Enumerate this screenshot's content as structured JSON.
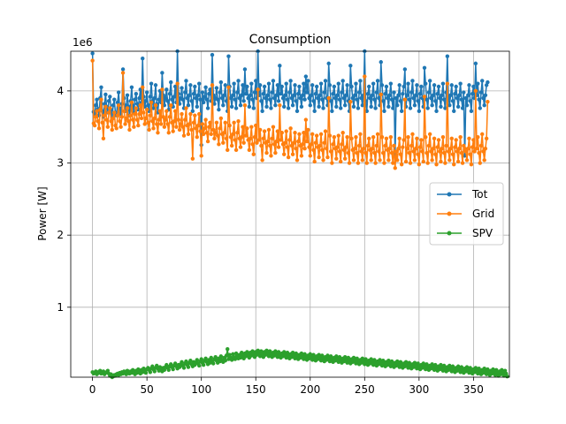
{
  "chart_data": {
    "type": "line",
    "title": "Consumption",
    "xlabel": "",
    "ylabel": "Power [W]",
    "y_offset_label": "1e6",
    "xlim": [
      -20,
      383
    ],
    "ylim": [
      0.03,
      4.55
    ],
    "x_ticks": [
      0,
      50,
      100,
      150,
      200,
      250,
      300,
      350
    ],
    "y_ticks": [
      1,
      2,
      3,
      4
    ],
    "grid": true,
    "legend_position": "center right",
    "series": [
      {
        "name": "Tot",
        "color": "#1f77b4",
        "x_start": 0,
        "x_step": 1,
        "values": [
          4.52,
          3.71,
          3.68,
          3.8,
          3.88,
          3.75,
          3.66,
          3.9,
          4.05,
          3.72,
          3.64,
          3.82,
          3.95,
          3.78,
          3.7,
          3.86,
          3.92,
          3.74,
          3.62,
          3.8,
          3.88,
          3.7,
          3.66,
          3.84,
          3.98,
          3.76,
          3.68,
          3.82,
          4.3,
          3.9,
          3.72,
          3.8,
          3.94,
          3.78,
          3.66,
          3.86,
          4.05,
          3.8,
          3.7,
          3.88,
          3.96,
          3.82,
          3.74,
          3.9,
          4.02,
          3.84,
          4.45,
          3.92,
          3.78,
          3.86,
          3.98,
          3.8,
          3.72,
          3.92,
          4.1,
          3.86,
          3.76,
          3.9,
          4.08,
          3.82,
          3.7,
          3.88,
          4.0,
          3.84,
          4.25,
          3.94,
          3.8,
          3.9,
          4.02,
          3.86,
          3.74,
          3.96,
          4.12,
          3.88,
          3.78,
          3.92,
          4.06,
          3.84,
          4.55,
          3.96,
          3.82,
          3.9,
          4.04,
          3.88,
          3.76,
          3.98,
          4.14,
          3.9,
          3.8,
          3.94,
          4.08,
          3.86,
          3.72,
          3.96,
          4.06,
          3.9,
          3.78,
          3.94,
          4.1,
          3.88,
          3.25,
          3.98,
          3.84,
          3.92,
          4.05,
          3.88,
          3.76,
          3.96,
          4.02,
          3.86,
          4.5,
          3.94,
          3.82,
          3.9,
          4.04,
          3.88,
          3.74,
          3.98,
          4.12,
          3.9,
          3.8,
          3.94,
          4.08,
          3.86,
          3.72,
          4.48,
          4.06,
          3.9,
          3.78,
          3.94,
          4.1,
          3.88,
          3.76,
          3.98,
          4.14,
          3.9,
          3.8,
          3.94,
          4.08,
          3.86,
          4.3,
          3.96,
          4.06,
          3.9,
          3.78,
          3.94,
          4.1,
          3.88,
          3.76,
          3.98,
          4.14,
          3.9,
          4.55,
          3.94,
          4.08,
          3.86,
          3.72,
          3.96,
          4.06,
          3.9,
          3.78,
          3.94,
          4.1,
          3.88,
          3.76,
          3.98,
          4.14,
          3.9,
          3.8,
          3.94,
          4.08,
          3.86,
          4.35,
          3.96,
          4.06,
          3.9,
          3.78,
          3.94,
          4.1,
          3.88,
          3.76,
          3.98,
          4.14,
          3.9,
          3.8,
          3.94,
          4.08,
          3.86,
          3.72,
          3.96,
          4.06,
          3.9,
          3.78,
          3.94,
          4.1,
          3.88,
          4.2,
          3.98,
          4.14,
          3.9,
          3.8,
          3.94,
          4.08,
          3.86,
          3.72,
          3.96,
          4.06,
          3.9,
          3.78,
          3.94,
          4.1,
          3.88,
          3.76,
          3.98,
          4.14,
          3.9,
          3.8,
          4.38,
          4.08,
          3.86,
          3.72,
          3.96,
          4.06,
          3.9,
          3.78,
          3.94,
          4.1,
          3.88,
          3.76,
          3.98,
          4.14,
          3.9,
          3.8,
          3.94,
          4.08,
          3.86,
          3.72,
          4.35,
          4.06,
          3.9,
          3.78,
          3.94,
          4.1,
          3.88,
          3.76,
          3.98,
          4.14,
          3.9,
          3.8,
          3.94,
          4.55,
          3.86,
          3.72,
          3.96,
          4.06,
          3.9,
          3.78,
          3.94,
          4.1,
          3.88,
          3.76,
          3.98,
          4.14,
          3.9,
          3.8,
          4.4,
          4.08,
          3.86,
          3.72,
          3.96,
          4.06,
          3.9,
          3.78,
          3.94,
          4.1,
          3.88,
          3.76,
          3.98,
          3.1,
          3.9,
          3.8,
          3.94,
          4.08,
          3.86,
          3.72,
          3.96,
          4.06,
          4.3,
          3.78,
          3.94,
          4.1,
          3.88,
          3.76,
          3.98,
          4.14,
          3.9,
          3.8,
          3.94,
          4.08,
          3.86,
          3.72,
          3.96,
          4.06,
          3.9,
          3.78,
          4.32,
          4.1,
          3.88,
          3.76,
          3.98,
          4.14,
          3.9,
          3.8,
          3.94,
          4.08,
          3.86,
          3.72,
          3.96,
          4.06,
          3.9,
          3.78,
          3.94,
          4.1,
          3.88,
          3.76,
          3.98,
          4.48,
          3.9,
          3.8,
          3.94,
          4.08,
          3.86,
          3.72,
          3.96,
          4.06,
          3.9,
          3.78,
          3.94,
          4.1,
          3.88,
          3.76,
          3.98,
          3.1,
          3.9,
          3.8,
          3.94,
          4.08,
          3.86,
          3.72,
          3.96,
          4.06,
          3.9,
          4.38,
          3.94,
          4.1,
          3.88,
          3.76,
          3.98,
          4.14,
          3.9,
          3.8,
          3.94,
          4.08,
          4.12
        ]
      },
      {
        "name": "Grid",
        "color": "#ff7f0e",
        "x_start": 0,
        "x_step": 1,
        "values": [
          4.42,
          3.55,
          3.52,
          3.64,
          3.72,
          3.58,
          3.48,
          3.74,
          3.88,
          3.56,
          3.34,
          3.66,
          3.78,
          3.6,
          3.5,
          3.7,
          3.76,
          3.58,
          3.46,
          3.62,
          3.7,
          3.52,
          3.48,
          3.66,
          3.8,
          3.58,
          3.5,
          3.64,
          4.25,
          3.72,
          3.54,
          3.62,
          3.76,
          3.58,
          3.46,
          3.66,
          3.84,
          3.6,
          3.5,
          3.68,
          3.76,
          3.6,
          3.52,
          3.68,
          3.8,
          3.62,
          4.05,
          3.7,
          3.54,
          3.62,
          3.74,
          3.56,
          3.46,
          3.66,
          3.84,
          3.58,
          3.48,
          3.62,
          3.8,
          3.54,
          3.42,
          3.6,
          3.72,
          3.54,
          4.02,
          3.64,
          3.5,
          3.6,
          3.72,
          3.54,
          3.42,
          3.64,
          3.8,
          3.56,
          3.44,
          3.58,
          3.72,
          3.5,
          4.1,
          3.6,
          3.46,
          3.54,
          3.68,
          3.5,
          3.38,
          3.6,
          3.76,
          3.52,
          3.4,
          3.54,
          3.68,
          3.46,
          3.06,
          3.56,
          3.66,
          3.48,
          3.36,
          3.52,
          3.68,
          3.44,
          3.1,
          3.54,
          3.4,
          3.48,
          3.6,
          3.42,
          3.3,
          3.5,
          3.56,
          3.4,
          4.08,
          3.46,
          3.34,
          3.42,
          3.56,
          3.38,
          3.26,
          3.48,
          3.62,
          3.4,
          3.28,
          3.42,
          3.56,
          3.34,
          3.18,
          4.05,
          3.52,
          3.36,
          3.24,
          3.4,
          3.56,
          3.32,
          3.18,
          3.42,
          3.58,
          3.34,
          3.22,
          3.36,
          3.5,
          3.28,
          3.8,
          3.38,
          3.48,
          3.32,
          3.18,
          3.34,
          3.5,
          3.26,
          3.12,
          3.36,
          3.52,
          3.28,
          4.02,
          3.32,
          3.46,
          3.24,
          3.04,
          3.34,
          3.44,
          3.28,
          3.14,
          3.3,
          3.46,
          3.24,
          3.1,
          3.34,
          3.5,
          3.26,
          3.14,
          3.3,
          3.44,
          3.22,
          3.8,
          3.32,
          3.42,
          3.26,
          3.12,
          3.28,
          3.44,
          3.22,
          3.08,
          3.32,
          3.48,
          3.24,
          3.12,
          3.28,
          3.42,
          3.2,
          3.04,
          3.3,
          3.4,
          3.24,
          3.1,
          3.26,
          3.42,
          3.2,
          3.6,
          3.3,
          3.46,
          3.22,
          3.1,
          3.26,
          3.4,
          3.18,
          3.02,
          3.28,
          3.38,
          3.22,
          3.08,
          3.24,
          3.4,
          3.18,
          3.04,
          3.28,
          3.44,
          3.2,
          3.08,
          3.9,
          3.38,
          3.16,
          3.0,
          3.26,
          3.36,
          3.2,
          3.06,
          3.22,
          3.38,
          3.16,
          3.02,
          3.26,
          3.42,
          3.18,
          3.06,
          3.22,
          3.36,
          3.14,
          3.0,
          3.85,
          3.34,
          3.18,
          3.04,
          3.2,
          3.36,
          3.14,
          3.0,
          3.24,
          3.4,
          3.16,
          3.04,
          3.2,
          4.2,
          3.14,
          3.0,
          3.24,
          3.34,
          3.18,
          3.04,
          3.2,
          3.36,
          3.14,
          3.0,
          3.24,
          3.4,
          3.16,
          3.04,
          3.95,
          3.36,
          3.14,
          3.0,
          3.24,
          3.34,
          3.18,
          3.04,
          3.2,
          3.36,
          3.14,
          3.0,
          3.24,
          2.93,
          3.16,
          3.04,
          3.2,
          3.34,
          3.12,
          2.98,
          3.22,
          3.32,
          3.88,
          3.02,
          3.2,
          3.36,
          3.14,
          3.0,
          3.24,
          3.4,
          3.16,
          3.04,
          3.2,
          3.34,
          3.12,
          2.98,
          3.22,
          3.32,
          3.16,
          3.02,
          3.92,
          3.36,
          3.14,
          3.0,
          3.24,
          3.4,
          3.16,
          3.04,
          3.2,
          3.34,
          3.12,
          2.98,
          3.22,
          3.32,
          3.16,
          3.02,
          3.2,
          3.36,
          3.14,
          3.0,
          3.24,
          4.1,
          3.16,
          3.04,
          3.2,
          3.34,
          3.12,
          2.98,
          3.22,
          3.32,
          3.16,
          3.02,
          3.2,
          3.36,
          3.14,
          3.0,
          3.24,
          3.2,
          3.16,
          3.04,
          3.2,
          3.34,
          3.12,
          2.98,
          3.22,
          3.32,
          3.16,
          4.0,
          3.2,
          3.36,
          3.14,
          3.0,
          3.24,
          3.4,
          3.16,
          3.04,
          3.2,
          3.34,
          3.85
        ]
      },
      {
        "name": "SPV",
        "color": "#2ca02c",
        "x_start": 0,
        "x_step": 1,
        "values": [
          0.1,
          0.08,
          0.09,
          0.11,
          0.07,
          0.1,
          0.09,
          0.12,
          0.08,
          0.1,
          0.11,
          0.07,
          0.09,
          0.1,
          0.12,
          0.08,
          0.05,
          0.07,
          0.03,
          0.04,
          0.06,
          0.05,
          0.07,
          0.08,
          0.06,
          0.09,
          0.07,
          0.1,
          0.08,
          0.11,
          0.09,
          0.07,
          0.12,
          0.1,
          0.08,
          0.11,
          0.09,
          0.13,
          0.1,
          0.07,
          0.12,
          0.09,
          0.14,
          0.11,
          0.08,
          0.13,
          0.1,
          0.15,
          0.12,
          0.09,
          0.14,
          0.16,
          0.13,
          0.1,
          0.15,
          0.18,
          0.14,
          0.11,
          0.16,
          0.19,
          0.15,
          0.12,
          0.17,
          0.14,
          0.11,
          0.16,
          0.13,
          0.17,
          0.2,
          0.16,
          0.13,
          0.18,
          0.21,
          0.17,
          0.14,
          0.19,
          0.22,
          0.18,
          0.15,
          0.2,
          0.17,
          0.21,
          0.24,
          0.19,
          0.16,
          0.22,
          0.25,
          0.2,
          0.17,
          0.23,
          0.26,
          0.21,
          0.18,
          0.24,
          0.2,
          0.23,
          0.27,
          0.22,
          0.19,
          0.25,
          0.28,
          0.23,
          0.2,
          0.26,
          0.29,
          0.24,
          0.21,
          0.27,
          0.23,
          0.3,
          0.25,
          0.22,
          0.28,
          0.31,
          0.26,
          0.23,
          0.29,
          0.25,
          0.32,
          0.27,
          0.24,
          0.3,
          0.26,
          0.33,
          0.42,
          0.28,
          0.34,
          0.3,
          0.27,
          0.35,
          0.31,
          0.28,
          0.36,
          0.32,
          0.29,
          0.34,
          0.3,
          0.37,
          0.33,
          0.29,
          0.36,
          0.32,
          0.38,
          0.34,
          0.3,
          0.37,
          0.33,
          0.39,
          0.35,
          0.31,
          0.38,
          0.34,
          0.4,
          0.36,
          0.32,
          0.39,
          0.35,
          0.31,
          0.38,
          0.34,
          0.4,
          0.36,
          0.32,
          0.39,
          0.35,
          0.31,
          0.37,
          0.33,
          0.39,
          0.35,
          0.31,
          0.38,
          0.34,
          0.3,
          0.36,
          0.32,
          0.38,
          0.34,
          0.3,
          0.37,
          0.33,
          0.29,
          0.35,
          0.31,
          0.37,
          0.33,
          0.29,
          0.36,
          0.32,
          0.28,
          0.34,
          0.3,
          0.36,
          0.32,
          0.28,
          0.35,
          0.31,
          0.27,
          0.33,
          0.29,
          0.35,
          0.31,
          0.27,
          0.34,
          0.3,
          0.26,
          0.32,
          0.28,
          0.34,
          0.3,
          0.26,
          0.33,
          0.29,
          0.25,
          0.31,
          0.27,
          0.33,
          0.29,
          0.25,
          0.32,
          0.28,
          0.24,
          0.3,
          0.26,
          0.32,
          0.28,
          0.24,
          0.31,
          0.27,
          0.23,
          0.29,
          0.25,
          0.31,
          0.27,
          0.23,
          0.3,
          0.26,
          0.22,
          0.28,
          0.24,
          0.3,
          0.26,
          0.22,
          0.29,
          0.25,
          0.21,
          0.27,
          0.23,
          0.29,
          0.25,
          0.21,
          0.28,
          0.24,
          0.2,
          0.26,
          0.22,
          0.28,
          0.24,
          0.2,
          0.27,
          0.23,
          0.19,
          0.25,
          0.21,
          0.27,
          0.23,
          0.19,
          0.26,
          0.22,
          0.18,
          0.24,
          0.2,
          0.26,
          0.22,
          0.18,
          0.25,
          0.21,
          0.17,
          0.23,
          0.19,
          0.25,
          0.21,
          0.17,
          0.24,
          0.2,
          0.16,
          0.22,
          0.18,
          0.24,
          0.2,
          0.16,
          0.23,
          0.19,
          0.15,
          0.21,
          0.17,
          0.23,
          0.19,
          0.15,
          0.22,
          0.18,
          0.14,
          0.2,
          0.16,
          0.22,
          0.18,
          0.14,
          0.21,
          0.17,
          0.13,
          0.19,
          0.15,
          0.21,
          0.17,
          0.13,
          0.2,
          0.16,
          0.12,
          0.18,
          0.14,
          0.2,
          0.16,
          0.12,
          0.19,
          0.15,
          0.11,
          0.17,
          0.13,
          0.19,
          0.15,
          0.11,
          0.18,
          0.14,
          0.1,
          0.16,
          0.12,
          0.18,
          0.14,
          0.1,
          0.17,
          0.13,
          0.09,
          0.15,
          0.11,
          0.17,
          0.13,
          0.09,
          0.16,
          0.12,
          0.08,
          0.14,
          0.1,
          0.16,
          0.12,
          0.08,
          0.15,
          0.11,
          0.07,
          0.13,
          0.09,
          0.15,
          0.11,
          0.07,
          0.14,
          0.1,
          0.06,
          0.12,
          0.08,
          0.14,
          0.1,
          0.06,
          0.13,
          0.09,
          0.05,
          0.11,
          0.07,
          0.13,
          0.09,
          0.05,
          0.12,
          0.08,
          0.04
        ]
      }
    ]
  }
}
